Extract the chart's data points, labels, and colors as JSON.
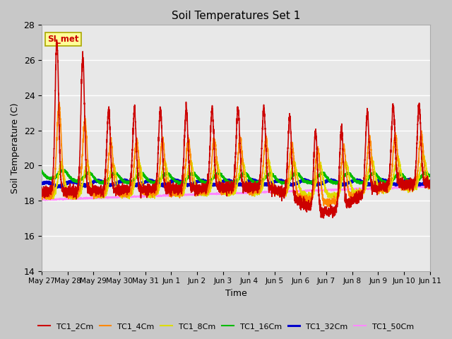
{
  "title": "Soil Temperatures Set 1",
  "xlabel": "Time",
  "ylabel": "Soil Temperature (C)",
  "ylim": [
    14,
    28
  ],
  "yticks": [
    14,
    16,
    18,
    20,
    22,
    24,
    26,
    28
  ],
  "plot_bg_color": "#e8e8e8",
  "fig_bg_color": "#c8c8c8",
  "annotation_text": "SI_met",
  "annotation_bg": "#ffff99",
  "annotation_border": "#aaa800",
  "annotation_text_color": "#cc0000",
  "line_colors": {
    "TC1_2Cm": "#cc0000",
    "TC1_4Cm": "#ff8800",
    "TC1_8Cm": "#dddd00",
    "TC1_16Cm": "#00bb00",
    "TC1_32Cm": "#0000cc",
    "TC1_50Cm": "#ff88ff"
  },
  "line_widths": {
    "TC1_2Cm": 1.2,
    "TC1_4Cm": 1.2,
    "TC1_8Cm": 1.2,
    "TC1_16Cm": 1.5,
    "TC1_32Cm": 2.2,
    "TC1_50Cm": 1.2
  },
  "x_tick_labels": [
    "May 27",
    "May 28",
    "May 29",
    "May 30",
    "May 31",
    "Jun 1",
    "Jun 2",
    "Jun 3",
    "Jun 4",
    "Jun 5",
    "Jun 6",
    "Jun 7",
    "Jun 8",
    "Jun 9",
    "Jun 10",
    "Jun 11"
  ],
  "n_days": 15,
  "grid_color": "#ffffff",
  "grid_linewidth": 1.0
}
